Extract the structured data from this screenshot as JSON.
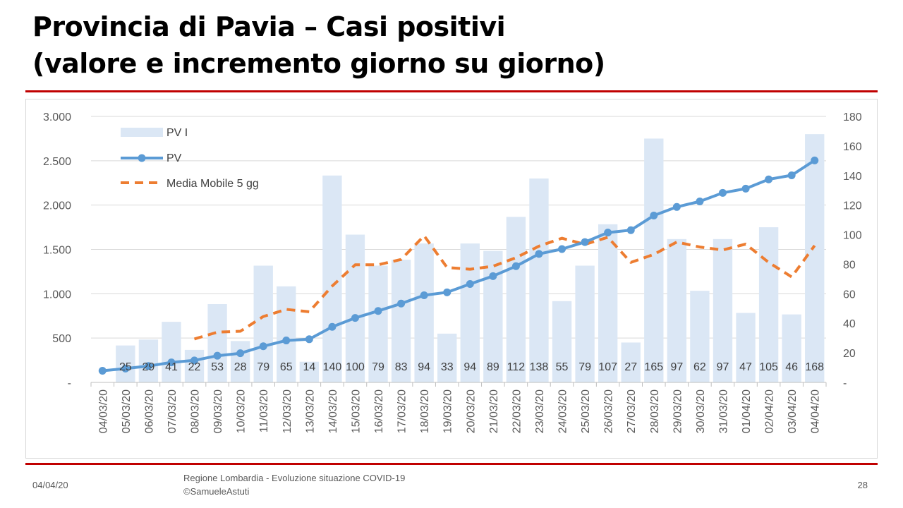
{
  "slide": {
    "title_line1": "Provincia di Pavia – Casi positivi",
    "title_line2": "(valore e incremento giorno su giorno)",
    "footer_date": "04/04/20",
    "footer_source_line1": "Regione Lombardia - Evoluzione situazione COVID-19",
    "footer_source_line2": "©SamueleAstuti",
    "page_number": "28"
  },
  "colors": {
    "bars": "#dbe7f5",
    "cumulative_line": "#5b9bd5",
    "moving_average": "#ed7d31",
    "rule": "#c00000"
  },
  "chart_data": {
    "type": "bar",
    "categories": [
      "04/03/20",
      "05/03/20",
      "06/03/20",
      "07/03/20",
      "08/03/20",
      "09/03/20",
      "10/03/20",
      "11/03/20",
      "12/03/20",
      "13/03/20",
      "14/03/20",
      "15/03/20",
      "16/03/20",
      "17/03/20",
      "18/03/20",
      "19/03/20",
      "20/03/20",
      "21/03/20",
      "22/03/20",
      "23/03/20",
      "24/03/20",
      "25/03/20",
      "26/03/20",
      "27/03/20",
      "28/03/20",
      "29/03/20",
      "30/03/20",
      "31/03/20",
      "01/04/20",
      "02/04/20",
      "03/04/20",
      "04/04/20"
    ],
    "series": [
      {
        "name": "PV I",
        "type": "bar",
        "axis": "right",
        "values": [
          null,
          25,
          29,
          41,
          22,
          53,
          28,
          79,
          65,
          14,
          140,
          100,
          79,
          83,
          94,
          33,
          94,
          89,
          112,
          138,
          55,
          79,
          107,
          27,
          165,
          97,
          62,
          97,
          47,
          105,
          46,
          168
        ],
        "labels": [
          "",
          "25",
          "29",
          "41",
          "22",
          "53",
          "28",
          "79",
          "65",
          "14",
          "140",
          "100",
          "79",
          "83",
          "94",
          "33",
          "94",
          "89",
          "112",
          "138",
          "55",
          "79",
          "107",
          "27",
          "165",
          "97",
          "62",
          "97",
          "47",
          "105",
          "46",
          "168"
        ]
      },
      {
        "name": "PV",
        "type": "line",
        "axis": "left",
        "values": [
          131,
          156,
          185,
          226,
          248,
          301,
          329,
          408,
          473,
          487,
          627,
          727,
          806,
          889,
          983,
          1016,
          1110,
          1199,
          1311,
          1449,
          1504,
          1583,
          1690,
          1717,
          1882,
          1979,
          2041,
          2138,
          2185,
          2290,
          2336,
          2504
        ]
      },
      {
        "name": "Media Mobile 5 gg",
        "type": "line",
        "axis": "right",
        "values": [
          null,
          null,
          null,
          null,
          29.4,
          34,
          34.6,
          44.6,
          49.4,
          47.8,
          65.2,
          79.6,
          79.6,
          83.2,
          99.2,
          77.8,
          76.6,
          78.6,
          84.4,
          92.2,
          97.6,
          93.4,
          98.2,
          81.2,
          86.6,
          95,
          91.6,
          89.6,
          93.6,
          81.2,
          71.4,
          92.6
        ]
      }
    ],
    "y_left": {
      "range": [
        0,
        3000
      ],
      "ticks": [
        "-",
        "500",
        "1.000",
        "1.500",
        "2.000",
        "2.500",
        "3.000"
      ]
    },
    "y_right": {
      "range": [
        0,
        180
      ],
      "ticks": [
        "-",
        "20",
        "40",
        "60",
        "80",
        "100",
        "120",
        "140",
        "160",
        "180"
      ]
    },
    "legend": {
      "position": "top-left",
      "items": [
        "PV I",
        "PV",
        "Media Mobile 5 gg"
      ]
    },
    "grid": "horizontal"
  }
}
